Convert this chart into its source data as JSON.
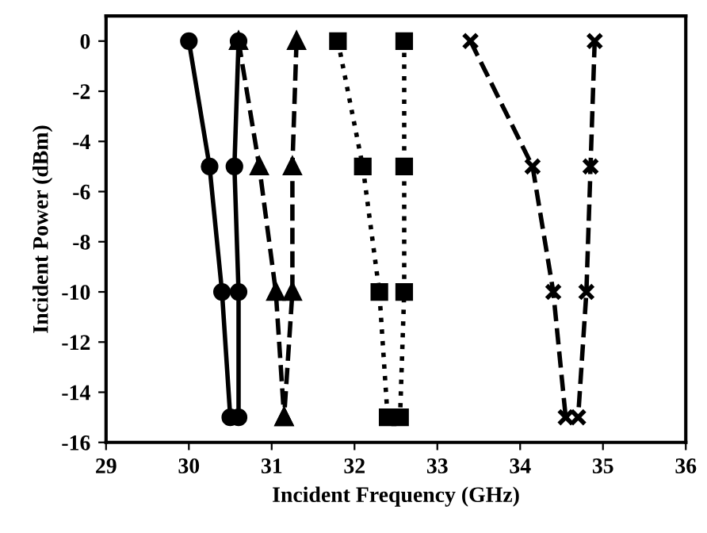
{
  "chart_data": {
    "type": "line",
    "xlabel": "Incident Frequency (GHz)",
    "ylabel": "Incident Power (dBm)",
    "xlim": [
      29,
      36
    ],
    "xticks": [
      29,
      30,
      31,
      32,
      33,
      34,
      35,
      36
    ],
    "ylim": [
      -16,
      1
    ],
    "yticks": [
      -16,
      -14,
      -12,
      -10,
      -8,
      -6,
      -4,
      -2,
      0
    ],
    "grid": false,
    "legend": false,
    "series": [
      {
        "color": "#000000",
        "marker": "circle",
        "line_style": "solid",
        "x": [
          30.0,
          30.25,
          30.4,
          30.5
        ],
        "values": [
          0,
          -5,
          -10,
          -15
        ]
      },
      {
        "color": "#000000",
        "marker": "circle",
        "line_style": "solid",
        "x": [
          30.6,
          30.55,
          30.6,
          30.6
        ],
        "values": [
          0,
          -5,
          -10,
          -15
        ]
      },
      {
        "color": "#000000",
        "marker": "triangle",
        "line_style": "dashed",
        "x": [
          30.6,
          30.85,
          31.05,
          31.15
        ],
        "values": [
          0,
          -5,
          -10,
          -15
        ]
      },
      {
        "color": "#000000",
        "marker": "triangle",
        "line_style": "dashed",
        "x": [
          31.3,
          31.25,
          31.25,
          31.15
        ],
        "values": [
          0,
          -5,
          -10,
          -15
        ]
      },
      {
        "color": "#000000",
        "marker": "square",
        "line_style": "dotted",
        "x": [
          31.8,
          32.1,
          32.3,
          32.4
        ],
        "values": [
          0,
          -5,
          -10,
          -15
        ]
      },
      {
        "color": "#000000",
        "marker": "square",
        "line_style": "dotted",
        "x": [
          32.6,
          32.6,
          32.6,
          32.55
        ],
        "values": [
          0,
          -5,
          -10,
          -15
        ]
      },
      {
        "color": "#000000",
        "marker": "cross",
        "line_style": "dashed",
        "x": [
          33.4,
          34.15,
          34.4,
          34.55
        ],
        "values": [
          0,
          -5,
          -10,
          -15
        ]
      },
      {
        "color": "#000000",
        "marker": "cross",
        "line_style": "dashed",
        "x": [
          34.9,
          34.85,
          34.8,
          34.7
        ],
        "values": [
          0,
          -5,
          -10,
          -15
        ]
      }
    ]
  }
}
